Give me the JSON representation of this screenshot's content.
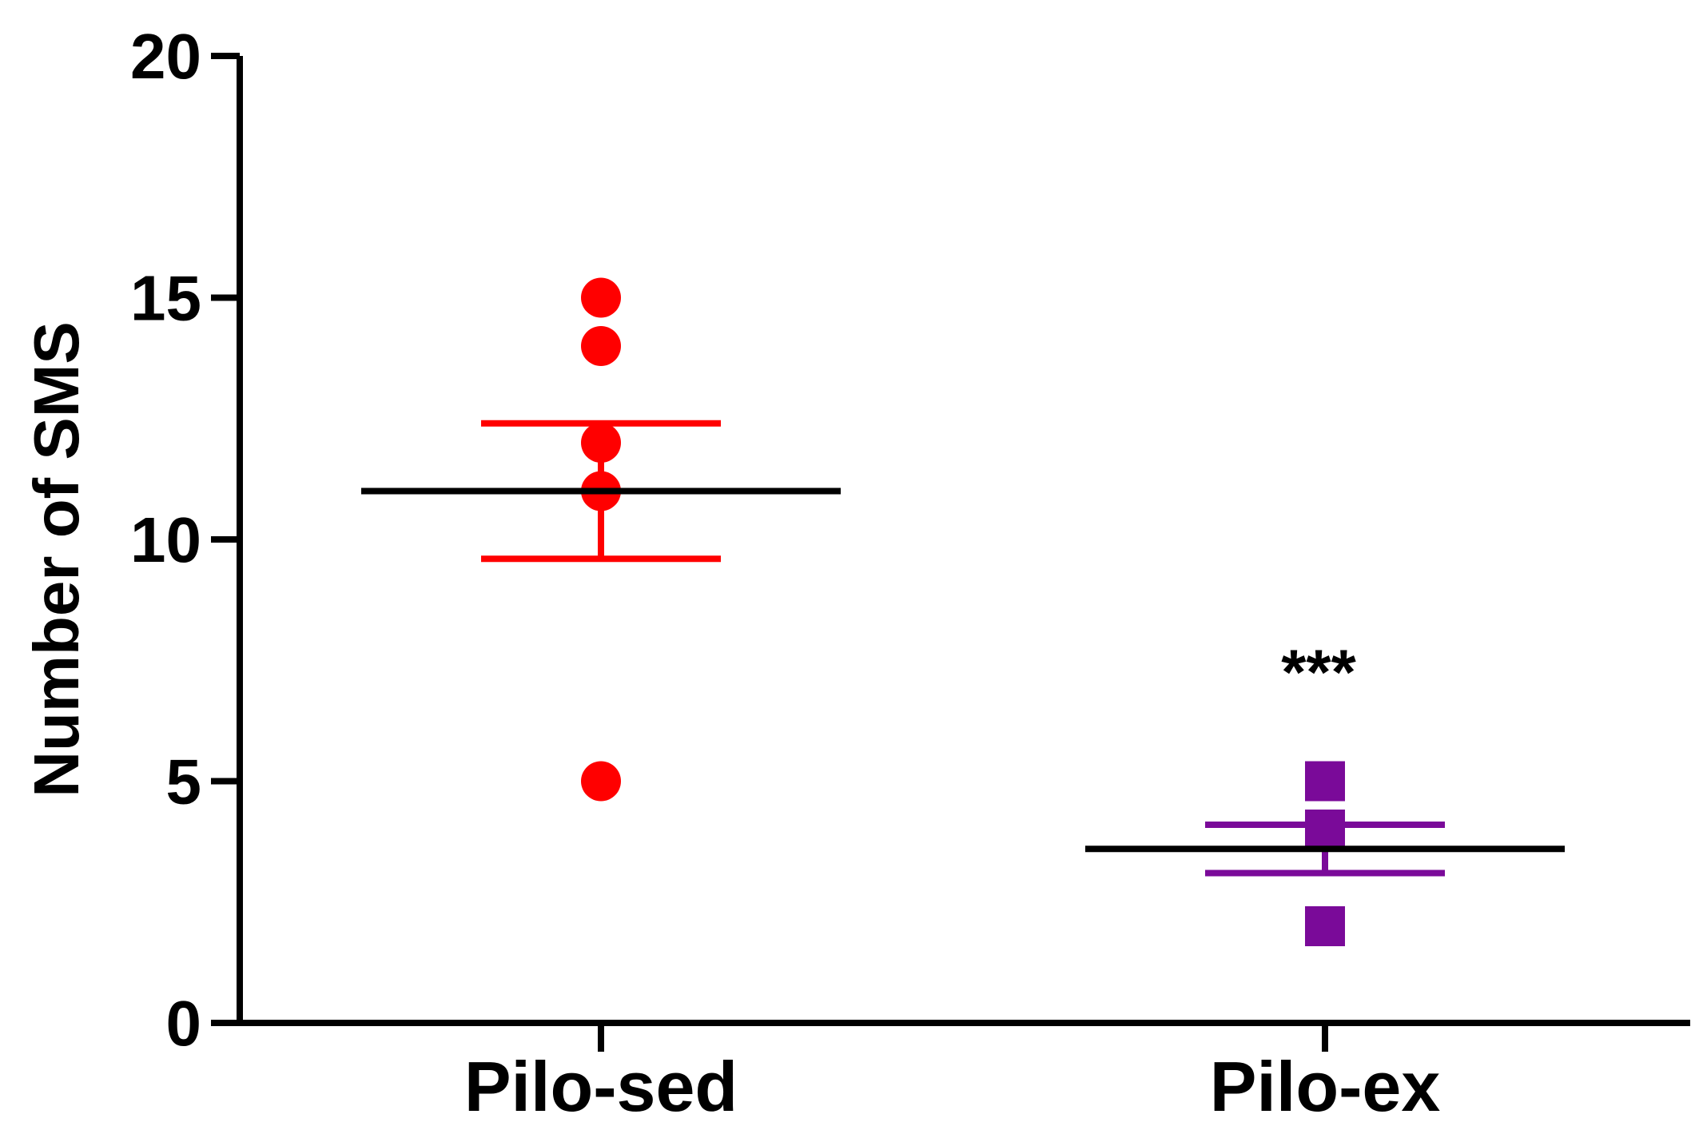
{
  "chart_data": {
    "type": "scatter",
    "ylabel": "Number of SMS",
    "ylim": [
      0,
      20
    ],
    "yticks": [
      0,
      5,
      10,
      15,
      20
    ],
    "grid": false,
    "categories": [
      "Pilo-sed",
      "Pilo-ex"
    ],
    "series": [
      {
        "category": "Pilo-sed",
        "marker": "circle",
        "color": "#ff0000",
        "points": [
          15,
          14,
          12,
          11,
          5
        ],
        "mean": 11,
        "error": [
          9.6,
          12.4
        ],
        "annotation": ""
      },
      {
        "category": "Pilo-ex",
        "marker": "square",
        "color": "#7a0a99",
        "points": [
          5,
          4,
          2
        ],
        "mean": 3.6,
        "error": [
          3.1,
          4.1
        ],
        "annotation": "***"
      }
    ],
    "mean_line_color": "#000000"
  }
}
